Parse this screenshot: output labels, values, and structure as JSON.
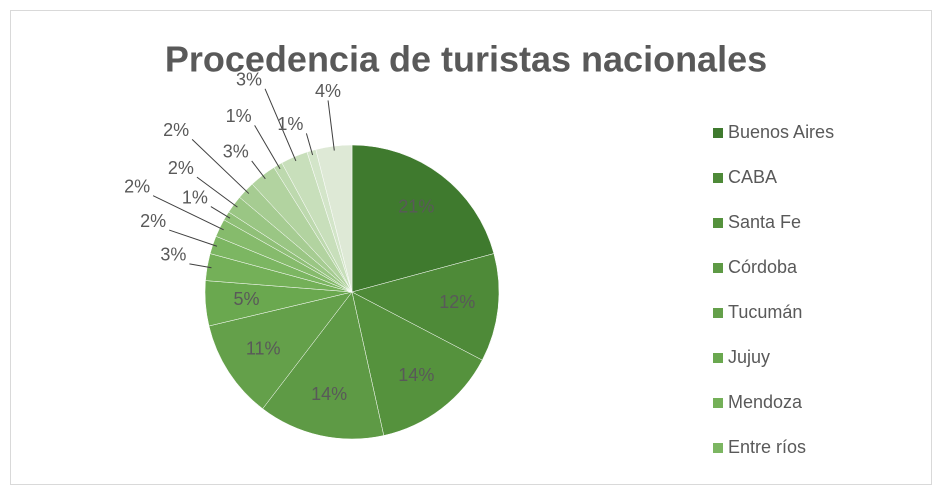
{
  "chart_data": {
    "type": "pie",
    "title": "Procedencia de turistas nacionales",
    "categories": [
      "Buenos Aires",
      "CABA",
      "Santa Fe",
      "Córdoba",
      "Tucumán",
      "Jujuy",
      "Mendoza",
      "Entre ríos",
      null,
      null,
      null,
      null,
      null,
      null,
      null,
      null,
      null
    ],
    "values": [
      21,
      12,
      14,
      14,
      11,
      5,
      3,
      2,
      2,
      1,
      2,
      2,
      3,
      1,
      3,
      1,
      4
    ],
    "value_labels": [
      "21%",
      "12%",
      "14%",
      "14%",
      "11%",
      "5%",
      "3%",
      "2%",
      "2%",
      "1%",
      "2%",
      "2%",
      "3%",
      "1%",
      "3%",
      "1%",
      "4%"
    ],
    "colors": [
      "#3f7a2e",
      "#4e8a38",
      "#55923d",
      "#5e9a45",
      "#64a04a",
      "#6aa84f",
      "#74b058",
      "#7cb662",
      "#86bb6c",
      "#90c078",
      "#9ac684",
      "#a6cc92",
      "#b2d3a0",
      "#bdd9ae",
      "#c8dfbb",
      "#d3e5c9",
      "#dee9d6"
    ],
    "legend": "right"
  }
}
